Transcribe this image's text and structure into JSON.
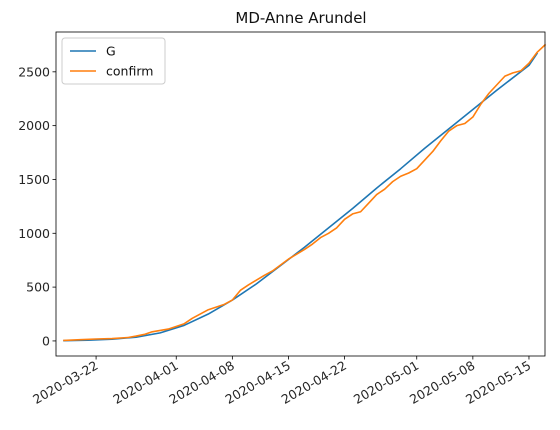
{
  "chart_data": {
    "type": "line",
    "title": "MD-Anne Arundel",
    "xlabel": "",
    "ylabel": "",
    "x_type": "date",
    "xlim": [
      "2020-03-17",
      "2020-05-17"
    ],
    "ylim": [
      -140,
      2870
    ],
    "x_ticks": [
      "2020-03-22",
      "2020-04-01",
      "2020-04-08",
      "2020-04-15",
      "2020-04-22",
      "2020-05-01",
      "2020-05-08",
      "2020-05-15"
    ],
    "y_ticks": [
      0,
      500,
      1000,
      1500,
      2000,
      2500
    ],
    "legend_position": "top-left",
    "grid": false,
    "series": [
      {
        "name": "G",
        "color": "#1f77b4",
        "points": [
          [
            "2020-03-18",
            2
          ],
          [
            "2020-03-21",
            7
          ],
          [
            "2020-03-24",
            16
          ],
          [
            "2020-03-27",
            35
          ],
          [
            "2020-03-30",
            75
          ],
          [
            "2020-04-02",
            145
          ],
          [
            "2020-04-05",
            250
          ],
          [
            "2020-04-08",
            380
          ],
          [
            "2020-04-11",
            530
          ],
          [
            "2020-04-14",
            700
          ],
          [
            "2020-04-17",
            870
          ],
          [
            "2020-04-20",
            1050
          ],
          [
            "2020-04-23",
            1230
          ],
          [
            "2020-04-26",
            1420
          ],
          [
            "2020-04-29",
            1600
          ],
          [
            "2020-05-02",
            1790
          ],
          [
            "2020-05-05",
            1970
          ],
          [
            "2020-05-08",
            2150
          ],
          [
            "2020-05-11",
            2330
          ],
          [
            "2020-05-15",
            2560
          ],
          [
            "2020-05-16",
            2670
          ]
        ]
      },
      {
        "name": "confirm",
        "color": "#ff7f0e",
        "points": [
          [
            "2020-03-18",
            5
          ],
          [
            "2020-03-20",
            12
          ],
          [
            "2020-03-22",
            18
          ],
          [
            "2020-03-24",
            22
          ],
          [
            "2020-03-26",
            32
          ],
          [
            "2020-03-27",
            45
          ],
          [
            "2020-03-28",
            60
          ],
          [
            "2020-03-29",
            85
          ],
          [
            "2020-03-31",
            110
          ],
          [
            "2020-04-02",
            160
          ],
          [
            "2020-04-03",
            210
          ],
          [
            "2020-04-05",
            290
          ],
          [
            "2020-04-07",
            340
          ],
          [
            "2020-04-08",
            380
          ],
          [
            "2020-04-09",
            470
          ],
          [
            "2020-04-10",
            520
          ],
          [
            "2020-04-12",
            610
          ],
          [
            "2020-04-13",
            650
          ],
          [
            "2020-04-15",
            760
          ],
          [
            "2020-04-17",
            850
          ],
          [
            "2020-04-18",
            900
          ],
          [
            "2020-04-19",
            960
          ],
          [
            "2020-04-20",
            1000
          ],
          [
            "2020-04-21",
            1050
          ],
          [
            "2020-04-22",
            1130
          ],
          [
            "2020-04-23",
            1180
          ],
          [
            "2020-04-24",
            1200
          ],
          [
            "2020-04-25",
            1280
          ],
          [
            "2020-04-26",
            1360
          ],
          [
            "2020-04-27",
            1410
          ],
          [
            "2020-04-28",
            1480
          ],
          [
            "2020-04-29",
            1530
          ],
          [
            "2020-04-30",
            1560
          ],
          [
            "2020-05-01",
            1600
          ],
          [
            "2020-05-02",
            1680
          ],
          [
            "2020-05-03",
            1760
          ],
          [
            "2020-05-04",
            1860
          ],
          [
            "2020-05-05",
            1950
          ],
          [
            "2020-05-06",
            2000
          ],
          [
            "2020-05-07",
            2020
          ],
          [
            "2020-05-08",
            2080
          ],
          [
            "2020-05-09",
            2200
          ],
          [
            "2020-05-10",
            2300
          ],
          [
            "2020-05-11",
            2380
          ],
          [
            "2020-05-12",
            2460
          ],
          [
            "2020-05-13",
            2490
          ],
          [
            "2020-05-14",
            2510
          ],
          [
            "2020-05-15",
            2580
          ],
          [
            "2020-05-16",
            2680
          ],
          [
            "2020-05-17",
            2750
          ]
        ]
      }
    ]
  }
}
